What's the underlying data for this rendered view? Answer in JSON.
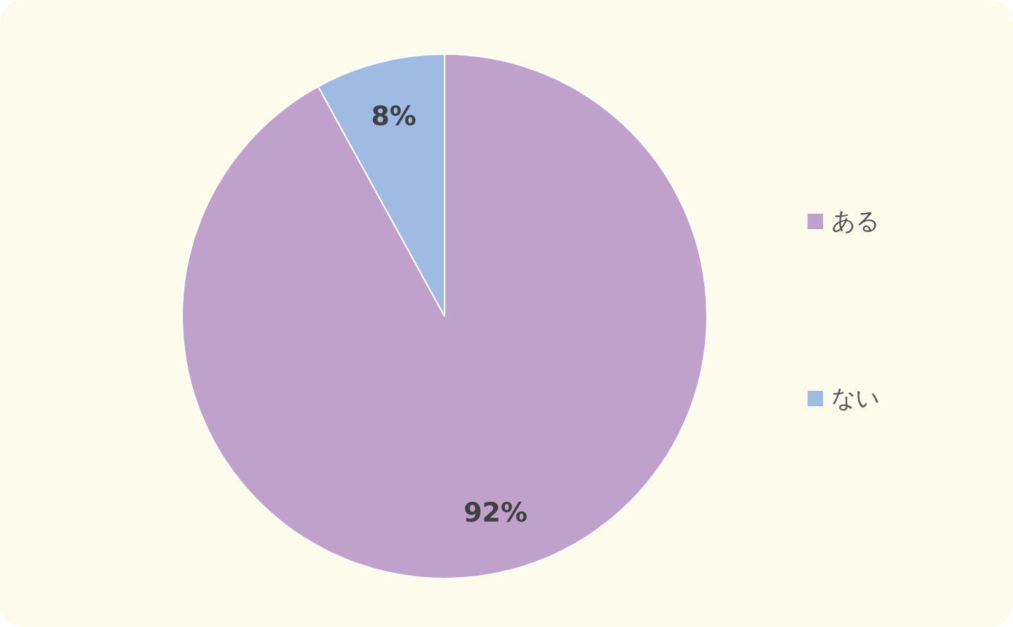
{
  "chart_data": {
    "type": "pie",
    "categories": [
      "ある",
      "ない"
    ],
    "values": [
      92,
      8
    ],
    "colors": [
      "#c0a1cc",
      "#9fbae3"
    ],
    "value_labels": [
      "92%",
      "8%"
    ],
    "legend": "right"
  }
}
